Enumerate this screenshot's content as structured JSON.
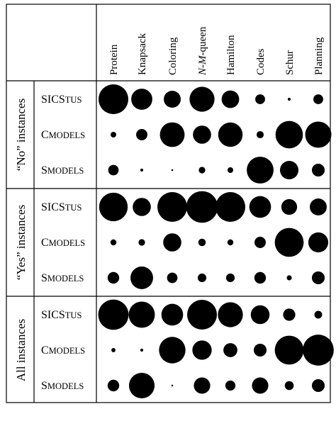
{
  "chart_data": {
    "type": "bubble-matrix",
    "columns": [
      "Protein",
      "Knapsack",
      "Coloring",
      "N-M-queen",
      "Hamilton",
      "Codes",
      "Schur",
      "Planning"
    ],
    "groups": [
      {
        "label": "“No” instances",
        "rows": [
          {
            "system": "SICStus",
            "values": [
              1.0,
              0.71,
              0.57,
              0.84,
              0.59,
              0.33,
              0.1,
              0.33
            ]
          },
          {
            "system": "Cmodels",
            "values": [
              0.19,
              0.38,
              0.83,
              0.61,
              0.82,
              0.24,
              0.92,
              0.88
            ]
          },
          {
            "system": "Smodels",
            "values": [
              0.35,
              0.1,
              0.06,
              0.22,
              0.19,
              0.9,
              0.62,
              0.43
            ]
          }
        ]
      },
      {
        "label": "“Yes” instances",
        "rows": [
          {
            "system": "SICStus",
            "values": [
              0.96,
              0.61,
              1.0,
              1.06,
              1.0,
              0.73,
              0.53,
              0.57
            ]
          },
          {
            "system": "Cmodels",
            "values": [
              0.2,
              0.22,
              0.61,
              0.25,
              0.2,
              0.38,
              0.97,
              0.67
            ]
          },
          {
            "system": "Smodels",
            "values": [
              0.39,
              0.76,
              0.35,
              0.29,
              0.29,
              0.39,
              0.17,
              0.43
            ]
          }
        ]
      },
      {
        "label": "All instances",
        "rows": [
          {
            "system": "SICStus",
            "values": [
              1.02,
              0.88,
              0.73,
              1.0,
              0.84,
              0.63,
              0.41,
              0.26
            ]
          },
          {
            "system": "Cmodels",
            "values": [
              0.14,
              0.1,
              0.89,
              0.65,
              0.47,
              0.43,
              0.97,
              1.04
            ]
          },
          {
            "system": "Smodels",
            "values": [
              0.39,
              0.86,
              0.06,
              0.55,
              0.34,
              0.55,
              0.3,
              0.43
            ]
          }
        ]
      }
    ]
  }
}
